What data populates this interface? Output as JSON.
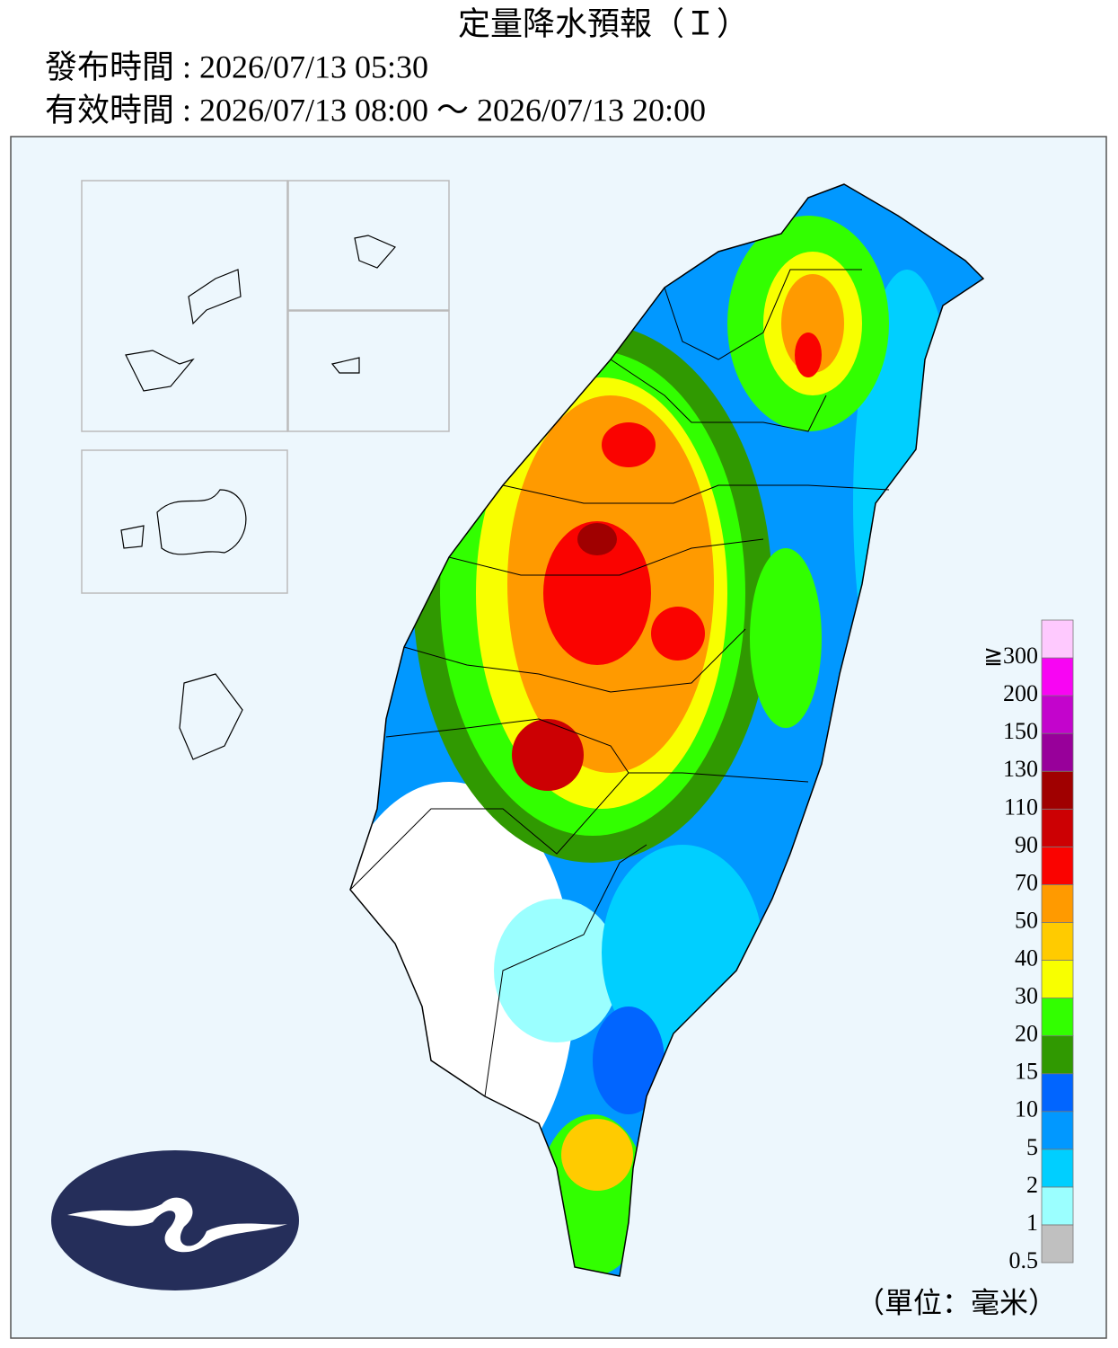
{
  "header": {
    "title": "定量降水預報（Ｉ）",
    "issued": "發布時間 : 2026/07/13 05:30",
    "valid": "有效時間 : 2026/07/13 08:00 ～ 2026/07/13 20:00"
  },
  "legend": {
    "items": [
      {
        "label": "0.5",
        "color": "#c0c0c0"
      },
      {
        "label": "1",
        "color": "#9bffff"
      },
      {
        "label": "2",
        "color": "#00cfff"
      },
      {
        "label": "5",
        "color": "#0198ff"
      },
      {
        "label": "10",
        "color": "#0165ff"
      },
      {
        "label": "15",
        "color": "#309901"
      },
      {
        "label": "20",
        "color": "#32ff00"
      },
      {
        "label": "30",
        "color": "#f8ff00"
      },
      {
        "label": "40",
        "color": "#ffcb00"
      },
      {
        "label": "50",
        "color": "#ff9a00"
      },
      {
        "label": "70",
        "color": "#fa0300"
      },
      {
        "label": "90",
        "color": "#cc0003"
      },
      {
        "label": "110",
        "color": "#a00000"
      },
      {
        "label": "130",
        "color": "#98009a"
      },
      {
        "label": "150",
        "color": "#c304cc"
      },
      {
        "label": "200",
        "color": "#f805f3"
      },
      {
        "label": "≧300",
        "color": "#fec9fe"
      }
    ],
    "unit": "（單位：毫米）"
  }
}
